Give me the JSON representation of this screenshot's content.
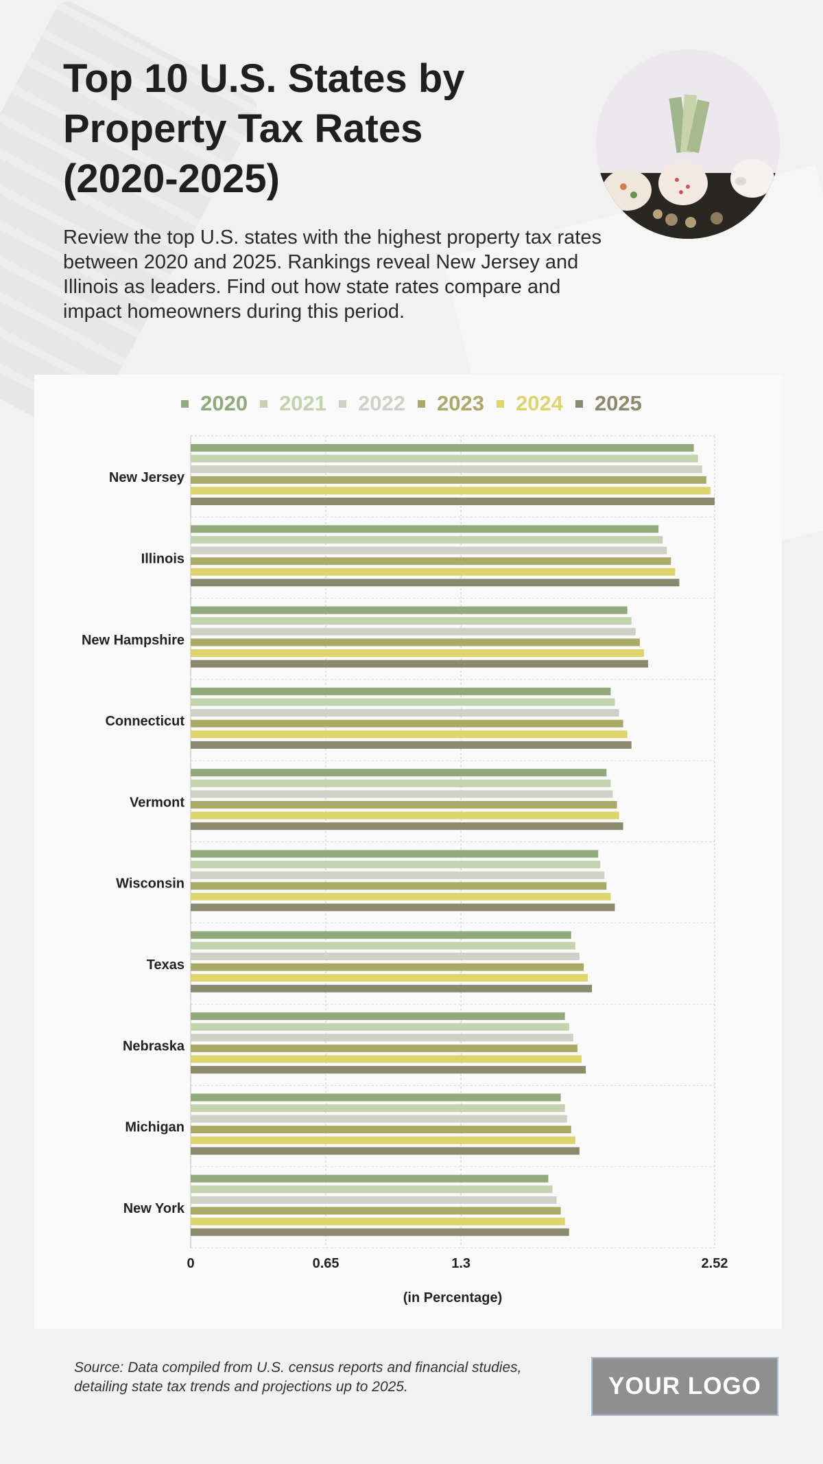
{
  "header": {
    "title": "Top 10 U.S. States by Property Tax Rates (2020-2025)",
    "subtitle": "Review the top U.S. states with the highest property tax rates between 2020 and 2025. Rankings reveal New Jersey and Illinois as leaders. Find out how state rates compare and impact homeowners during this period."
  },
  "colors": {
    "2020": "#90aa7b",
    "2021": "#c2d3ad",
    "2022": "#cfd0c6",
    "2023": "#aaa966",
    "2024": "#ddd56c",
    "2025": "#8c8a6d"
  },
  "chart_data": {
    "type": "bar",
    "orientation": "horizontal",
    "categories": [
      "New Jersey",
      "Illinois",
      "New Hampshire",
      "Connecticut",
      "Vermont",
      "Wisconsin",
      "Texas",
      "Nebraska",
      "Michigan",
      "New York"
    ],
    "series": [
      {
        "name": "2020",
        "values": [
          2.42,
          2.25,
          2.1,
          2.02,
          2.0,
          1.96,
          1.83,
          1.8,
          1.78,
          1.72
        ]
      },
      {
        "name": "2021",
        "values": [
          2.44,
          2.27,
          2.12,
          2.04,
          2.02,
          1.97,
          1.85,
          1.82,
          1.8,
          1.74
        ]
      },
      {
        "name": "2022",
        "values": [
          2.46,
          2.29,
          2.14,
          2.06,
          2.03,
          1.99,
          1.87,
          1.84,
          1.81,
          1.76
        ]
      },
      {
        "name": "2023",
        "values": [
          2.48,
          2.31,
          2.16,
          2.08,
          2.05,
          2.0,
          1.89,
          1.86,
          1.83,
          1.78
        ]
      },
      {
        "name": "2024",
        "values": [
          2.5,
          2.33,
          2.18,
          2.1,
          2.06,
          2.02,
          1.91,
          1.88,
          1.85,
          1.8
        ]
      },
      {
        "name": "2025",
        "values": [
          2.52,
          2.35,
          2.2,
          2.12,
          2.08,
          2.04,
          1.93,
          1.9,
          1.87,
          1.82
        ]
      }
    ],
    "xticks": [
      "0",
      "0.65",
      "1.3",
      "2.52"
    ],
    "xtick_values": [
      0,
      0.65,
      1.3,
      2.52
    ],
    "xlim": [
      0,
      2.52
    ],
    "xlabel": "(in Percentage)",
    "ylabel": "",
    "grid": true,
    "legend": "top-center"
  },
  "footer": {
    "source": "Source: Data compiled from U.S. census reports and financial studies, detailing state tax trends and projections up to 2025.",
    "logo_text": "YOUR LOGO"
  },
  "photo": {
    "subject": "piggy-banks-with-cash"
  }
}
